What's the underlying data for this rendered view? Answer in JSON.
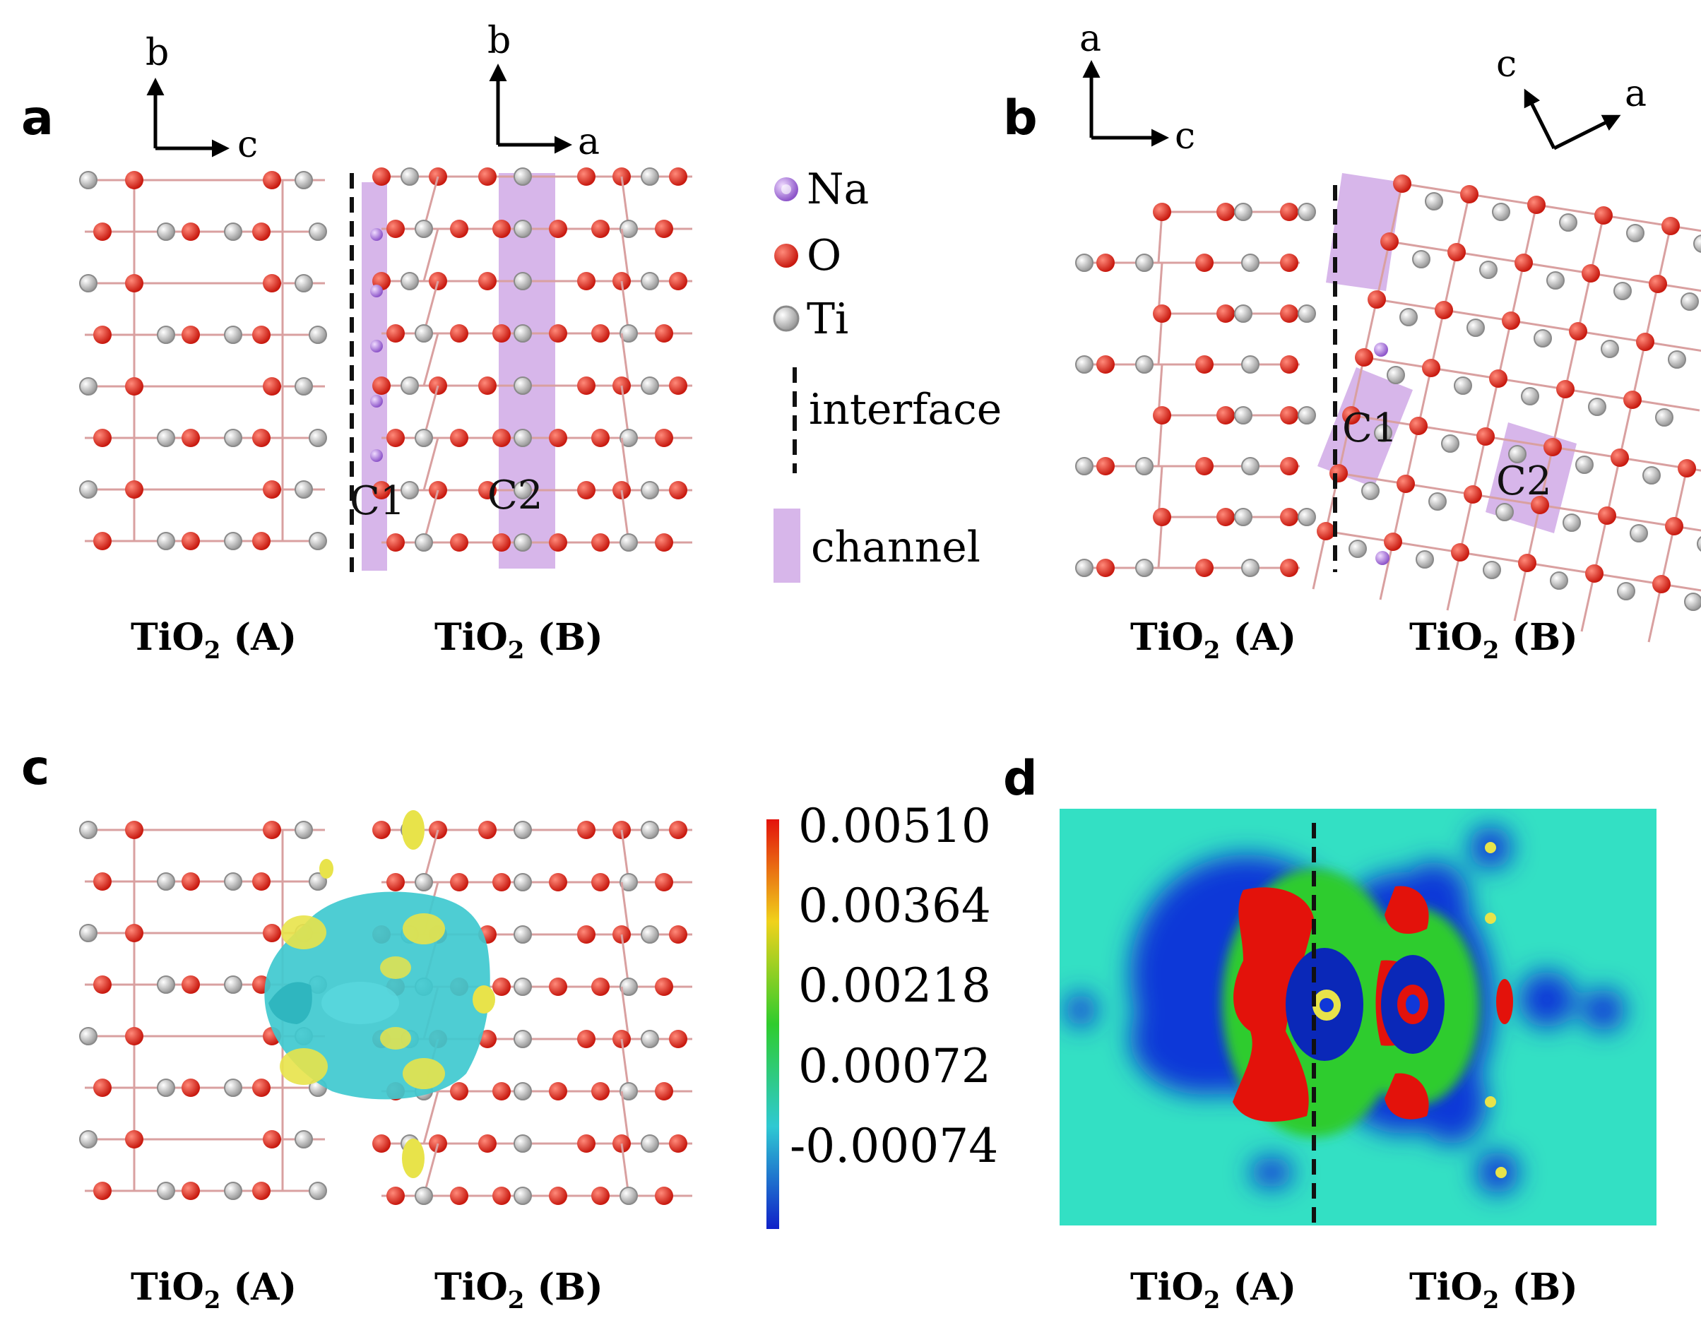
{
  "panels": {
    "a": {
      "letter": "a",
      "axes_left": {
        "up": "b",
        "right": "c"
      },
      "axes_right": {
        "up": "b",
        "right": "a"
      },
      "channels": [
        "C1",
        "C2"
      ],
      "captions": [
        {
          "main": "TiO",
          "sub": "2",
          "tail": " (A)"
        },
        {
          "main": "TiO",
          "sub": "2",
          "tail": " (B)"
        }
      ]
    },
    "b": {
      "letter": "b",
      "axes_left": {
        "up": "a",
        "right": "c"
      },
      "axes_right": {
        "up": "c",
        "right": "a"
      },
      "channels": [
        "C1",
        "C2"
      ],
      "captions": [
        {
          "main": "TiO",
          "sub": "2",
          "tail": " (A)"
        },
        {
          "main": "TiO",
          "sub": "2",
          "tail": " (B)"
        }
      ]
    },
    "c": {
      "letter": "c",
      "captions": [
        {
          "main": "TiO",
          "sub": "2",
          "tail": " (A)"
        },
        {
          "main": "TiO",
          "sub": "2",
          "tail": " (B)"
        }
      ]
    },
    "d": {
      "letter": "d",
      "captions": [
        {
          "main": "TiO",
          "sub": "2",
          "tail": " (A)"
        },
        {
          "main": "TiO",
          "sub": "2",
          "tail": " (B)"
        }
      ]
    }
  },
  "legend": {
    "items": [
      {
        "label": "Na",
        "color": "#a97fd6"
      },
      {
        "label": "O",
        "color": "#d8271e"
      },
      {
        "label": "Ti",
        "color": "#bdbdbd"
      },
      {
        "label": "interface",
        "color": "#000000"
      },
      {
        "label": "channel",
        "color": "#d7b6ea"
      }
    ]
  },
  "colorbar": {
    "ticks": [
      "0.00510",
      "0.00364",
      "0.00218",
      "0.00072",
      "-0.00074"
    ],
    "colors": [
      "#e3120b",
      "#f0d21b",
      "#2fcc2d",
      "#2fc9d3",
      "#1020c8"
    ]
  },
  "colors": {
    "oxygen": "#d8271e",
    "titanium": "#c4c4c4",
    "sodium": "#a97fd6",
    "channel": "#d7b6ea",
    "map_background": "#33e0c4",
    "isosurface": "#3fc9cf",
    "isosurface_lobe": "#e8e34a"
  }
}
